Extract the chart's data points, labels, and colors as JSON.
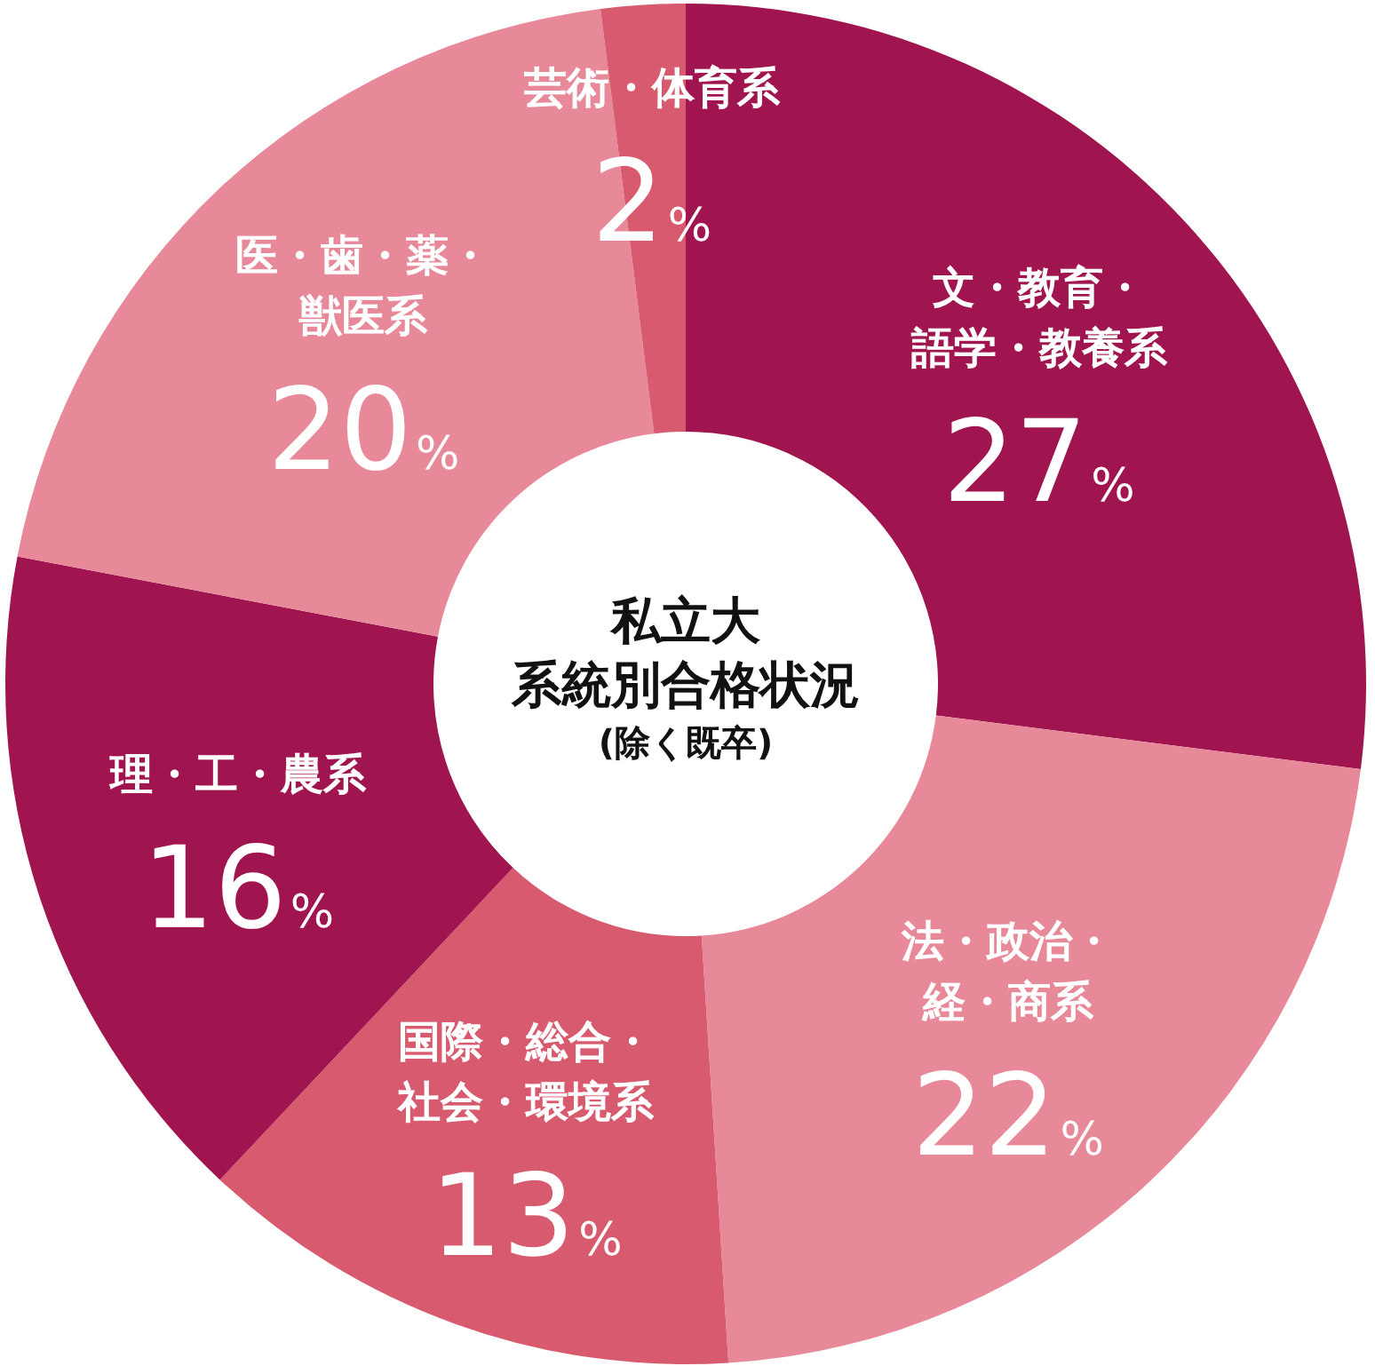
{
  "chart_data": {
    "type": "donut",
    "title": "私立大系統別合格状況",
    "subtitle": "(除く既卒)",
    "categories": [
      "文・教育・語学・教養系",
      "法・政治・経・商系",
      "国際・総合・社会・環境系",
      "理・工・農系",
      "医・歯・薬・獣医系",
      "芸術・体育系"
    ],
    "values": [
      27,
      22,
      13,
      16,
      20,
      2
    ],
    "value_labels": [
      "27%",
      "22%",
      "13%",
      "16%",
      "20%",
      "2%"
    ],
    "colors": [
      "#a0154f",
      "#e8899a",
      "#d85a6e",
      "#a0154f",
      "#e8899a",
      "#d85a6e"
    ]
  }
}
